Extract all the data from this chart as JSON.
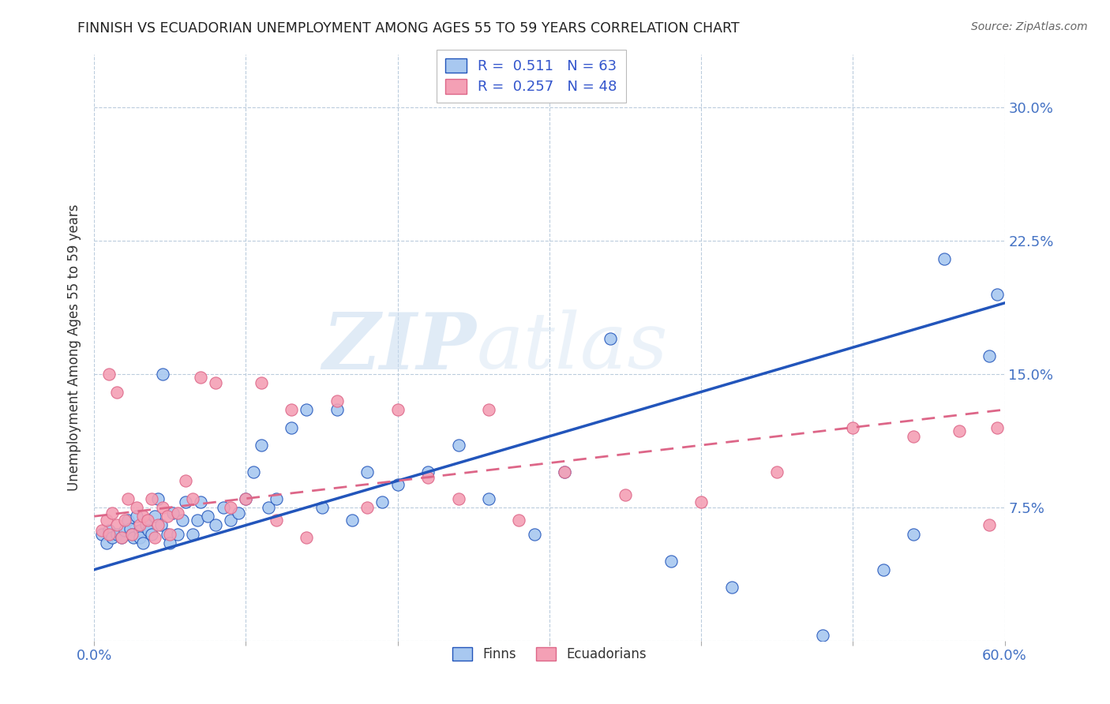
{
  "title": "FINNISH VS ECUADORIAN UNEMPLOYMENT AMONG AGES 55 TO 59 YEARS CORRELATION CHART",
  "source": "Source: ZipAtlas.com",
  "ylabel": "Unemployment Among Ages 55 to 59 years",
  "xlim": [
    0.0,
    0.6
  ],
  "ylim": [
    0.0,
    0.33
  ],
  "xticks": [
    0.0,
    0.1,
    0.2,
    0.3,
    0.4,
    0.5,
    0.6
  ],
  "xticklabels": [
    "0.0%",
    "",
    "",
    "",
    "",
    "",
    "60.0%"
  ],
  "ytick_positions": [
    0.0,
    0.075,
    0.15,
    0.225,
    0.3
  ],
  "yticklabels_right": [
    "",
    "7.5%",
    "15.0%",
    "22.5%",
    "30.0%"
  ],
  "legend_R1": "R =  0.511",
  "legend_N1": "N = 63",
  "legend_R2": "R =  0.257",
  "legend_N2": "N = 48",
  "color_finn": "#A8C8F0",
  "color_ecuador": "#F4A0B5",
  "color_line_finn": "#2255BB",
  "color_line_ecuador": "#DD6688",
  "background_color": "#FFFFFF",
  "grid_color": "#BBCCDD",
  "watermark_zip": "ZIP",
  "watermark_atlas": "atlas",
  "finn_x": [
    0.005,
    0.008,
    0.01,
    0.012,
    0.015,
    0.018,
    0.02,
    0.022,
    0.024,
    0.025,
    0.026,
    0.028,
    0.03,
    0.03,
    0.032,
    0.034,
    0.036,
    0.038,
    0.04,
    0.042,
    0.044,
    0.045,
    0.048,
    0.05,
    0.052,
    0.055,
    0.058,
    0.06,
    0.065,
    0.068,
    0.07,
    0.075,
    0.08,
    0.085,
    0.09,
    0.095,
    0.1,
    0.105,
    0.11,
    0.115,
    0.12,
    0.13,
    0.14,
    0.15,
    0.16,
    0.17,
    0.18,
    0.19,
    0.2,
    0.22,
    0.24,
    0.26,
    0.29,
    0.31,
    0.34,
    0.38,
    0.42,
    0.48,
    0.52,
    0.54,
    0.56,
    0.59,
    0.595
  ],
  "finn_y": [
    0.06,
    0.055,
    0.062,
    0.058,
    0.06,
    0.058,
    0.062,
    0.068,
    0.063,
    0.06,
    0.058,
    0.07,
    0.062,
    0.058,
    0.055,
    0.065,
    0.062,
    0.06,
    0.07,
    0.08,
    0.065,
    0.15,
    0.06,
    0.055,
    0.072,
    0.06,
    0.068,
    0.078,
    0.06,
    0.068,
    0.078,
    0.07,
    0.065,
    0.075,
    0.068,
    0.072,
    0.08,
    0.095,
    0.11,
    0.075,
    0.08,
    0.12,
    0.13,
    0.075,
    0.13,
    0.068,
    0.095,
    0.078,
    0.088,
    0.095,
    0.11,
    0.08,
    0.06,
    0.095,
    0.17,
    0.045,
    0.03,
    0.003,
    0.04,
    0.06,
    0.215,
    0.16,
    0.195
  ],
  "ecuador_x": [
    0.005,
    0.008,
    0.01,
    0.012,
    0.015,
    0.018,
    0.02,
    0.022,
    0.025,
    0.028,
    0.03,
    0.032,
    0.035,
    0.038,
    0.04,
    0.042,
    0.045,
    0.048,
    0.05,
    0.055,
    0.06,
    0.065,
    0.07,
    0.08,
    0.09,
    0.1,
    0.11,
    0.12,
    0.13,
    0.14,
    0.16,
    0.18,
    0.2,
    0.22,
    0.24,
    0.26,
    0.28,
    0.31,
    0.35,
    0.4,
    0.45,
    0.5,
    0.54,
    0.57,
    0.59,
    0.595,
    0.01,
    0.015
  ],
  "ecuador_y": [
    0.062,
    0.068,
    0.06,
    0.072,
    0.065,
    0.058,
    0.068,
    0.08,
    0.06,
    0.075,
    0.065,
    0.07,
    0.068,
    0.08,
    0.058,
    0.065,
    0.075,
    0.07,
    0.06,
    0.072,
    0.09,
    0.08,
    0.148,
    0.145,
    0.075,
    0.08,
    0.145,
    0.068,
    0.13,
    0.058,
    0.135,
    0.075,
    0.13,
    0.092,
    0.08,
    0.13,
    0.068,
    0.095,
    0.082,
    0.078,
    0.095,
    0.12,
    0.115,
    0.118,
    0.065,
    0.12,
    0.15,
    0.14
  ]
}
